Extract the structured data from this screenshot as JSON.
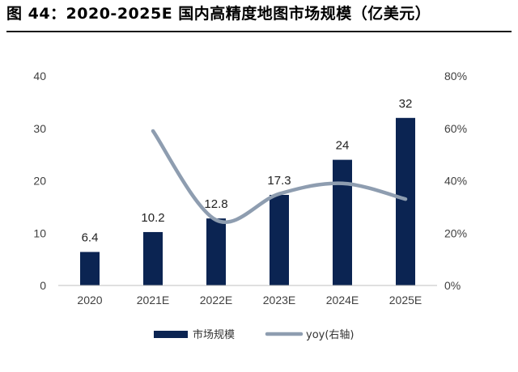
{
  "title": "图 44：2020-2025E 国内高精度地图市场规模（亿美元）",
  "colors": {
    "bar": "#0b2452",
    "line": "#8e9db0",
    "axis": "#bfbfbf",
    "text": "#404040"
  },
  "chart_data": {
    "type": "bar",
    "title": "图 44：2020-2025E 国内高精度地图市场规模（亿美元）",
    "categories": [
      "2020",
      "2021E",
      "2022E",
      "2023E",
      "2024E",
      "2025E"
    ],
    "series": [
      {
        "name": "市场规模",
        "type": "bar",
        "axis": "left",
        "values": [
          6.4,
          10.2,
          12.8,
          17.3,
          24,
          32
        ],
        "labels": [
          "6.4",
          "10.2",
          "12.8",
          "17.3",
          "24",
          "32"
        ]
      },
      {
        "name": "yoy(右轴)",
        "type": "line",
        "axis": "right",
        "values": [
          null,
          0.59,
          0.25,
          0.35,
          0.39,
          0.33
        ]
      }
    ],
    "y_left": {
      "min": 0,
      "max": 40,
      "ticks": [
        0,
        10,
        20,
        30,
        40
      ],
      "tick_labels": [
        "0",
        "10",
        "20",
        "30",
        "40"
      ]
    },
    "y_right": {
      "min": 0,
      "max": 0.8,
      "ticks": [
        0,
        0.2,
        0.4,
        0.6,
        0.8
      ],
      "tick_labels": [
        "0%",
        "20%",
        "40%",
        "60%",
        "80%"
      ]
    },
    "grid": false,
    "legend": {
      "position": "bottom",
      "entries": [
        "市场规模",
        "yoy(右轴)"
      ]
    }
  }
}
